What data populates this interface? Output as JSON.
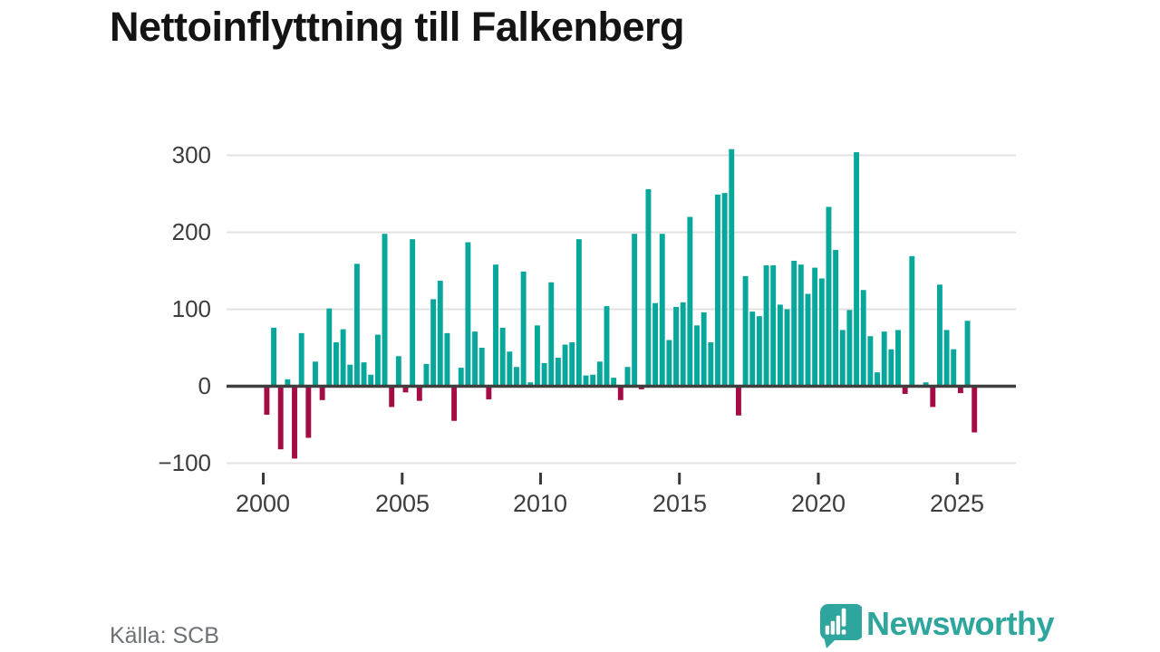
{
  "page": {
    "title": "Nettoinflyttning till Falkenberg"
  },
  "axes": {
    "y_tick_labels": [
      "300",
      "200",
      "100",
      "0",
      "−100"
    ],
    "x_tick_labels": [
      "2000",
      "2005",
      "2010",
      "2015",
      "2020",
      "2025"
    ]
  },
  "footer": {
    "source": "Källa: SCB",
    "logo_text": "Newsworthy"
  },
  "colors": {
    "positive": "#07a79c",
    "negative": "#a50b44",
    "gridline": "#e1e1e1",
    "zero_line": "#3f3f3f",
    "tick": "#3a3a3a"
  },
  "chart_data": {
    "type": "bar",
    "title": "Nettoinflyttning till Falkenberg",
    "source": "Källa: SCB",
    "frequency": "quarterly",
    "xlabel": "",
    "ylabel": "",
    "y_ticks": [
      300,
      200,
      100,
      0,
      -100
    ],
    "ylim": [
      -120,
      325
    ],
    "x_tick_labels": [
      2000,
      2005,
      2010,
      2015,
      2020,
      2025
    ],
    "legend": "none",
    "grid": "horizontal",
    "series": [
      {
        "year": 2000,
        "values": [
          -37,
          76,
          -82,
          9
        ]
      },
      {
        "year": 2001,
        "values": [
          -94,
          69,
          -67,
          32
        ]
      },
      {
        "year": 2002,
        "values": [
          -18,
          101,
          57,
          74
        ]
      },
      {
        "year": 2003,
        "values": [
          28,
          159,
          31,
          15
        ]
      },
      {
        "year": 2004,
        "values": [
          67,
          198,
          -27,
          39
        ]
      },
      {
        "year": 2005,
        "values": [
          -8,
          191,
          -19,
          29
        ]
      },
      {
        "year": 2006,
        "values": [
          113,
          137,
          69,
          -45
        ]
      },
      {
        "year": 2007,
        "values": [
          24,
          187,
          71,
          50
        ]
      },
      {
        "year": 2008,
        "values": [
          -17,
          158,
          76,
          45
        ]
      },
      {
        "year": 2009,
        "values": [
          25,
          149,
          5,
          79
        ]
      },
      {
        "year": 2010,
        "values": [
          30,
          135,
          37,
          54
        ]
      },
      {
        "year": 2011,
        "values": [
          57,
          191,
          14,
          15
        ]
      },
      {
        "year": 2012,
        "values": [
          32,
          104,
          11,
          -18
        ]
      },
      {
        "year": 2013,
        "values": [
          25,
          198,
          -4,
          256
        ]
      },
      {
        "year": 2014,
        "values": [
          108,
          198,
          60,
          103
        ]
      },
      {
        "year": 2015,
        "values": [
          109,
          220,
          79,
          96
        ]
      },
      {
        "year": 2016,
        "values": [
          57,
          249,
          251,
          308
        ]
      },
      {
        "year": 2017,
        "values": [
          -38,
          143,
          97,
          91
        ]
      },
      {
        "year": 2018,
        "values": [
          157,
          157,
          106,
          100
        ]
      },
      {
        "year": 2019,
        "values": [
          163,
          158,
          120,
          154
        ]
      },
      {
        "year": 2020,
        "values": [
          140,
          233,
          177,
          73
        ]
      },
      {
        "year": 2021,
        "values": [
          99,
          304,
          125,
          65
        ]
      },
      {
        "year": 2022,
        "values": [
          18,
          71,
          48,
          73
        ]
      },
      {
        "year": 2023,
        "values": [
          -10,
          169,
          0,
          5
        ]
      },
      {
        "year": 2024,
        "values": [
          -27,
          132,
          73,
          48
        ]
      },
      {
        "year": 2025,
        "values": [
          -9,
          85,
          -60
        ]
      }
    ]
  }
}
